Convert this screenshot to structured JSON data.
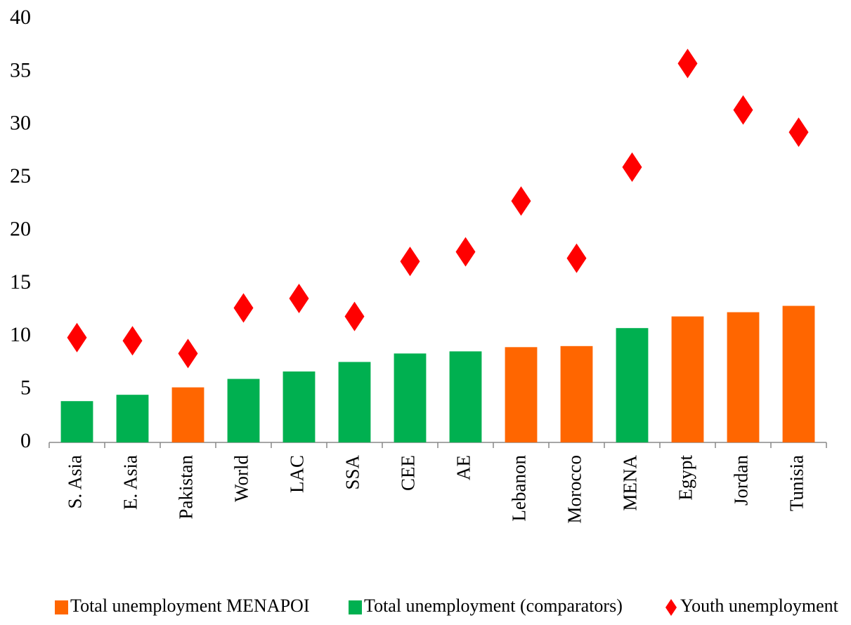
{
  "chart_data": {
    "type": "bar",
    "categories": [
      "S. Asia",
      "E. Asia",
      "Pakistan",
      "World",
      "LAC",
      "SSA",
      "CEE",
      "AE",
      "Lebanon",
      "Morocco",
      "MENA",
      "Egypt",
      "Jordan",
      "Tunisia"
    ],
    "series": [
      {
        "name": "Total unemployment MENAPOI",
        "type": "bar",
        "color": "#ff6600",
        "values": [
          null,
          null,
          5.2,
          null,
          null,
          null,
          null,
          null,
          9.0,
          9.1,
          null,
          11.9,
          12.3,
          12.9
        ]
      },
      {
        "name": "Total unemployment (comparators)",
        "type": "bar",
        "color": "#00b050",
        "values": [
          3.9,
          4.5,
          null,
          6.0,
          6.7,
          7.6,
          8.4,
          8.6,
          null,
          null,
          10.8,
          null,
          null,
          null
        ]
      },
      {
        "name": "Youth unemployment",
        "type": "scatter",
        "color": "#ff0000",
        "values": [
          9.9,
          9.6,
          8.4,
          12.7,
          13.6,
          11.9,
          17.1,
          18.0,
          22.8,
          17.4,
          26.0,
          35.8,
          31.4,
          29.3
        ]
      }
    ],
    "ylim": [
      0,
      40
    ],
    "yticks": [
      0,
      5,
      10,
      15,
      20,
      25,
      30,
      35,
      40
    ],
    "grid": false,
    "legend": "bottom"
  }
}
